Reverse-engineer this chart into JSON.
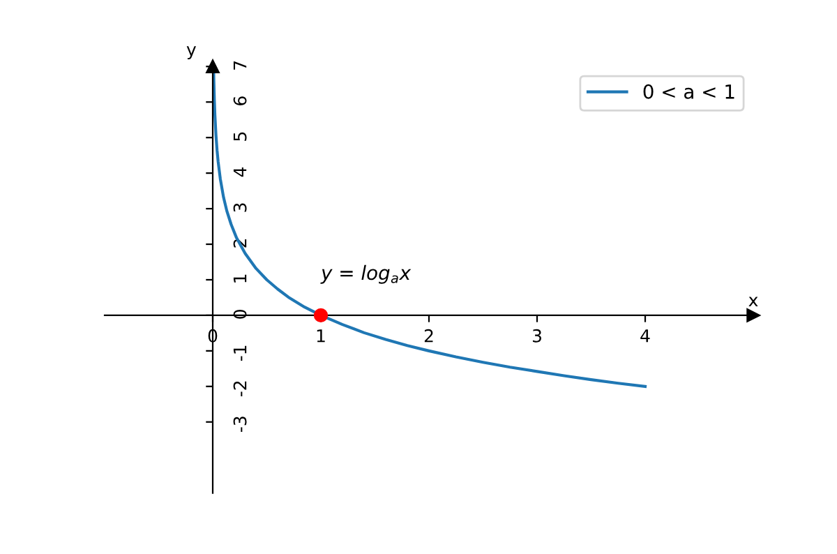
{
  "chart_data": {
    "type": "line",
    "xlabel": "x",
    "ylabel": "y",
    "xlim": [
      -1,
      5
    ],
    "ylim": [
      -5,
      7
    ],
    "xticks": [
      0,
      1,
      2,
      3,
      4
    ],
    "yticks": [
      -3,
      -2,
      -1,
      0,
      1,
      2,
      3,
      4,
      5,
      6,
      7
    ],
    "grid": false,
    "legend": "top right",
    "annotations": [
      "y = log$_{a}$x"
    ],
    "series": [
      {
        "name": "0 < a < 1",
        "color": "#1f77b4",
        "line_style": "solid",
        "marker": "none",
        "x": [
          0.009,
          0.01,
          0.015,
          0.02,
          0.03,
          0.04,
          0.05,
          0.07,
          0.1,
          0.13,
          0.17,
          0.22,
          0.3,
          0.4,
          0.5,
          0.6,
          0.7,
          0.85,
          1,
          1.2,
          1.4,
          1.6,
          1.8,
          2,
          2.25,
          2.5,
          2.75,
          3,
          3.25,
          3.5,
          3.75,
          4
        ],
        "values": [
          6.8,
          6.64,
          6.06,
          5.64,
          5.06,
          4.64,
          4.32,
          3.84,
          3.32,
          2.94,
          2.56,
          2.18,
          1.74,
          1.32,
          1,
          0.74,
          0.51,
          0.23,
          0,
          -0.26,
          -0.49,
          -0.68,
          -0.85,
          -1,
          -1.17,
          -1.32,
          -1.46,
          -1.58,
          -1.7,
          -1.81,
          -1.91,
          -2
        ]
      },
      {
        "type": "scatter",
        "color": "#ff0000",
        "marker": "circle",
        "x": [
          1
        ],
        "values": [
          0
        ]
      }
    ]
  }
}
